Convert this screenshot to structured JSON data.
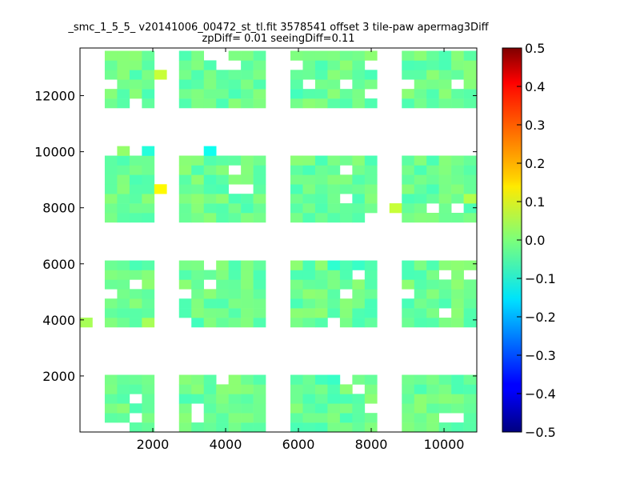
{
  "chart_data": {
    "type": "heatmap",
    "title": {
      "line1": "_smc_1_5_5_ v20141006_00472_st_tl.fit 3578541 offset 3 tile-paw apermag3Diff",
      "line2": "zpDiff= 0.01 seeingDiff=0.11"
    },
    "xlabel": "",
    "ylabel": "",
    "xlim": [
      0,
      10900
    ],
    "ylim": [
      0,
      13700
    ],
    "xticks": [
      2000,
      4000,
      6000,
      8000,
      10000
    ],
    "yticks": [
      2000,
      4000,
      6000,
      8000,
      10000,
      12000
    ],
    "colorbar": {
      "colormap": "jet",
      "range": [
        -0.5,
        0.5
      ],
      "ticks": [
        "0.5",
        "0.4",
        "0.3",
        "0.2",
        "0.1",
        "0.0",
        "−0.1",
        "−0.2",
        "−0.3",
        "−0.4",
        "−0.5"
      ],
      "tick_values": [
        0.5,
        0.4,
        0.3,
        0.2,
        0.1,
        0.0,
        -0.1,
        -0.2,
        -0.3,
        -0.4,
        -0.5
      ]
    },
    "cell_size": 340,
    "background_value": -0.02,
    "detectors": {
      "x_ranges": [
        [
          700,
          2050
        ],
        [
          2700,
          5050
        ],
        [
          5850,
          8150
        ],
        [
          8800,
          10900
        ]
      ],
      "y_ranges": [
        [
          0,
          1950
        ],
        [
          3800,
          6000
        ],
        [
          7650,
          9950
        ],
        [
          11550,
          13700
        ]
      ]
    },
    "outlier_cells": [
      {
        "x": 2250,
        "y": 8800,
        "value": 0.13
      },
      {
        "x": 3550,
        "y": 10050,
        "value": -0.11
      },
      {
        "x": 2250,
        "y": 12700,
        "value": 0.07
      },
      {
        "x": 6850,
        "y": 1900,
        "value": -0.07
      },
      {
        "x": 6850,
        "y": 5800,
        "value": -0.08
      },
      {
        "x": 7550,
        "y": 5800,
        "value": -0.07
      },
      {
        "x": 6550,
        "y": 1900,
        "value": -0.06
      },
      {
        "x": 8650,
        "y": 7950,
        "value": 0.07
      },
      {
        "x": 5950,
        "y": 11900,
        "value": -0.06
      },
      {
        "x": 3150,
        "y": 4050,
        "value": -0.06
      },
      {
        "x": 1350,
        "y": 10050,
        "value": 0.02
      },
      {
        "x": 1750,
        "y": 10050,
        "value": -0.09
      },
      {
        "x": 10550,
        "y": 8450,
        "value": 0.05
      },
      {
        "x": 1950,
        "y": 4050,
        "value": 0.04
      },
      {
        "x": 150,
        "y": 4050,
        "value": 0.04
      }
    ]
  }
}
